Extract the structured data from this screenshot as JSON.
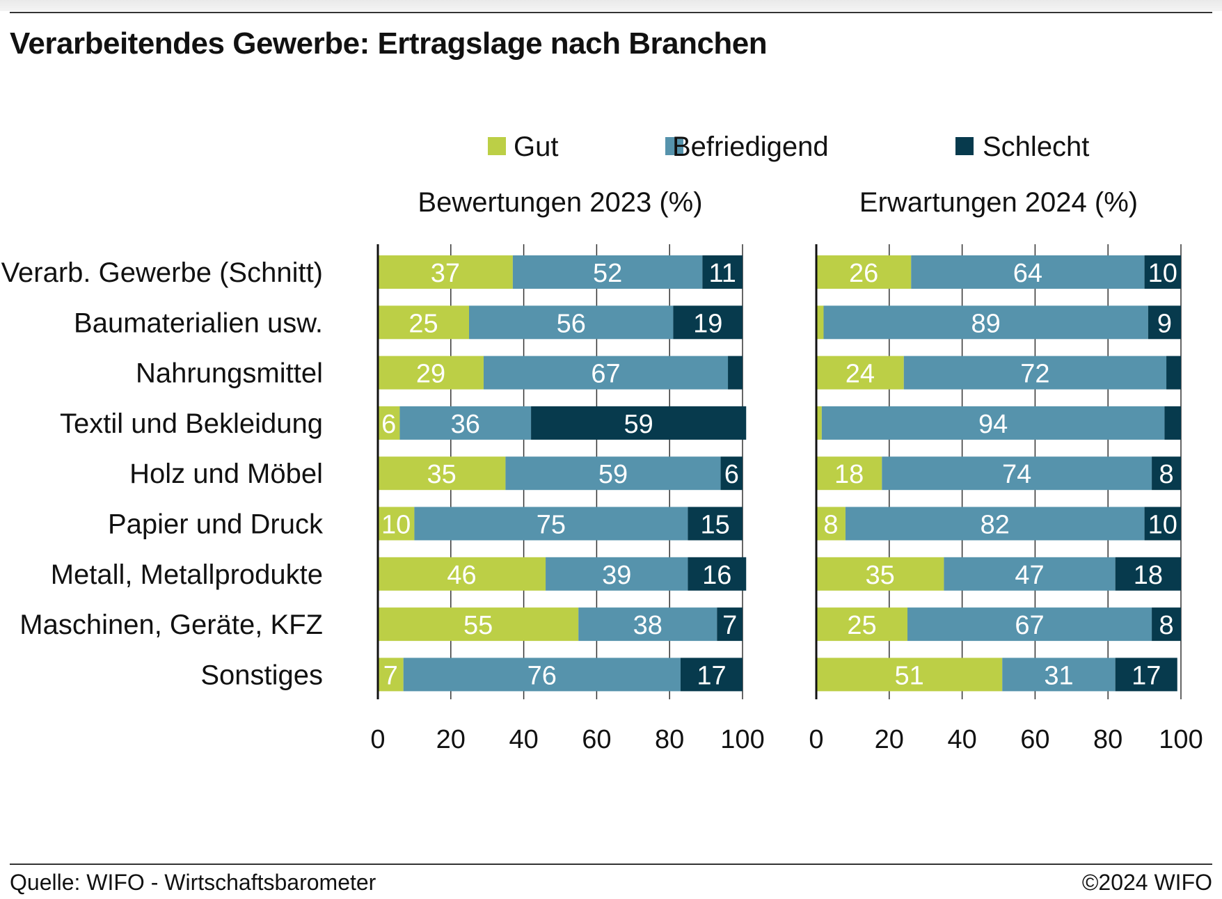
{
  "title": "Verarbeitendes Gewerbe: Ertragslage nach Branchen",
  "source": "Quelle: WIFO - Wirtschaftsbarometer",
  "copyright": "©2024 WIFO",
  "colors": {
    "Gut": "#bccf46",
    "Befriedigend": "#5693ac",
    "Schlecht": "#073a4d"
  },
  "chart_data": {
    "type": "bar",
    "orientation": "horizontal",
    "stacked": true,
    "legend": {
      "position": "top",
      "entries": [
        "Gut",
        "Befriedigend",
        "Schlecht"
      ]
    },
    "categories": [
      "Verarb. Gewerbe (Schnitt)",
      "Baumaterialien usw.",
      "Nahrungsmittel",
      "Textil und Bekleidung",
      "Holz und Möbel",
      "Papier und Druck",
      "Metall, Metallprodukte",
      "Maschinen, Geräte, KFZ",
      "Sonstiges"
    ],
    "xlim": [
      0,
      100
    ],
    "xticks": [
      0,
      20,
      40,
      60,
      80,
      100
    ],
    "grid": true,
    "panels": [
      {
        "title": "Bewertungen 2023 (%)",
        "series": [
          {
            "name": "Gut",
            "values": [
              37,
              25,
              29,
              6,
              35,
              10,
              46,
              55,
              7
            ]
          },
          {
            "name": "Befriedigend",
            "values": [
              52,
              56,
              67,
              36,
              59,
              75,
              39,
              38,
              76
            ]
          },
          {
            "name": "Schlecht",
            "values": [
              11,
              19,
              4,
              59,
              6,
              15,
              16,
              7,
              17
            ]
          }
        ],
        "labels": [
          [
            "37",
            "52",
            "11"
          ],
          [
            "25",
            "56",
            "19"
          ],
          [
            "29",
            "67",
            ""
          ],
          [
            "6",
            "36",
            "59"
          ],
          [
            "35",
            "59",
            "6"
          ],
          [
            "10",
            "75",
            "15"
          ],
          [
            "46",
            "39",
            "16"
          ],
          [
            "55",
            "38",
            "7"
          ],
          [
            "7",
            "76",
            "17"
          ]
        ]
      },
      {
        "title": "Erwartungen 2024 (%)",
        "series": [
          {
            "name": "Gut",
            "values": [
              26,
              2,
              24,
              1.5,
              18,
              8,
              35,
              25,
              51
            ]
          },
          {
            "name": "Befriedigend",
            "values": [
              64,
              89,
              72,
              94,
              74,
              82,
              47,
              67,
              31
            ]
          },
          {
            "name": "Schlecht",
            "values": [
              10,
              9,
              4,
              4.5,
              8,
              10,
              18,
              8,
              17
            ]
          }
        ],
        "labels": [
          [
            "26",
            "64",
            "10"
          ],
          [
            "",
            "89",
            "9"
          ],
          [
            "24",
            "72",
            ""
          ],
          [
            "",
            "94",
            ""
          ],
          [
            "18",
            "74",
            "8"
          ],
          [
            "8",
            "82",
            "10"
          ],
          [
            "35",
            "47",
            "18"
          ],
          [
            "25",
            "67",
            "8"
          ],
          [
            "51",
            "31",
            "17"
          ]
        ]
      }
    ]
  }
}
